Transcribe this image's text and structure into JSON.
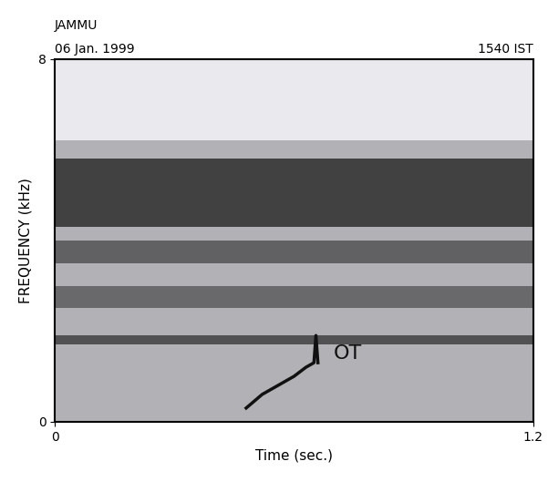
{
  "chart_data": {
    "type": "spectrogram",
    "title": "JAMMU",
    "subtitle": "06 Jan. 1999",
    "time_label": "1540 IST",
    "x_label": "Time (sec.)",
    "y_label": "FREQUENCY (kHz)",
    "xlim": [
      0,
      1.2
    ],
    "xticks": [
      0,
      1.2
    ],
    "ylim": [
      0,
      8
    ],
    "yticks": [
      0,
      8
    ],
    "color": "#111111",
    "bands": [
      {
        "low": 0,
        "high": 6.2,
        "intensity": 0.25
      },
      {
        "low": 1.7,
        "high": 1.9,
        "intensity": 0.6
      },
      {
        "low": 2.5,
        "high": 3.0,
        "intensity": 0.45
      },
      {
        "low": 3.5,
        "high": 4.0,
        "intensity": 0.5
      },
      {
        "low": 4.3,
        "high": 5.8,
        "intensity": 0.7
      }
    ],
    "series": [
      {
        "name": "OT",
        "x": [
          0.48,
          0.52,
          0.56,
          0.6,
          0.63,
          0.65,
          0.655,
          0.66
        ],
        "values": [
          0.3,
          0.6,
          0.8,
          1.0,
          1.2,
          1.3,
          1.9,
          1.3
        ]
      }
    ],
    "annotations": [
      {
        "text": "OT",
        "x": 0.7,
        "y": 1.5
      }
    ]
  }
}
